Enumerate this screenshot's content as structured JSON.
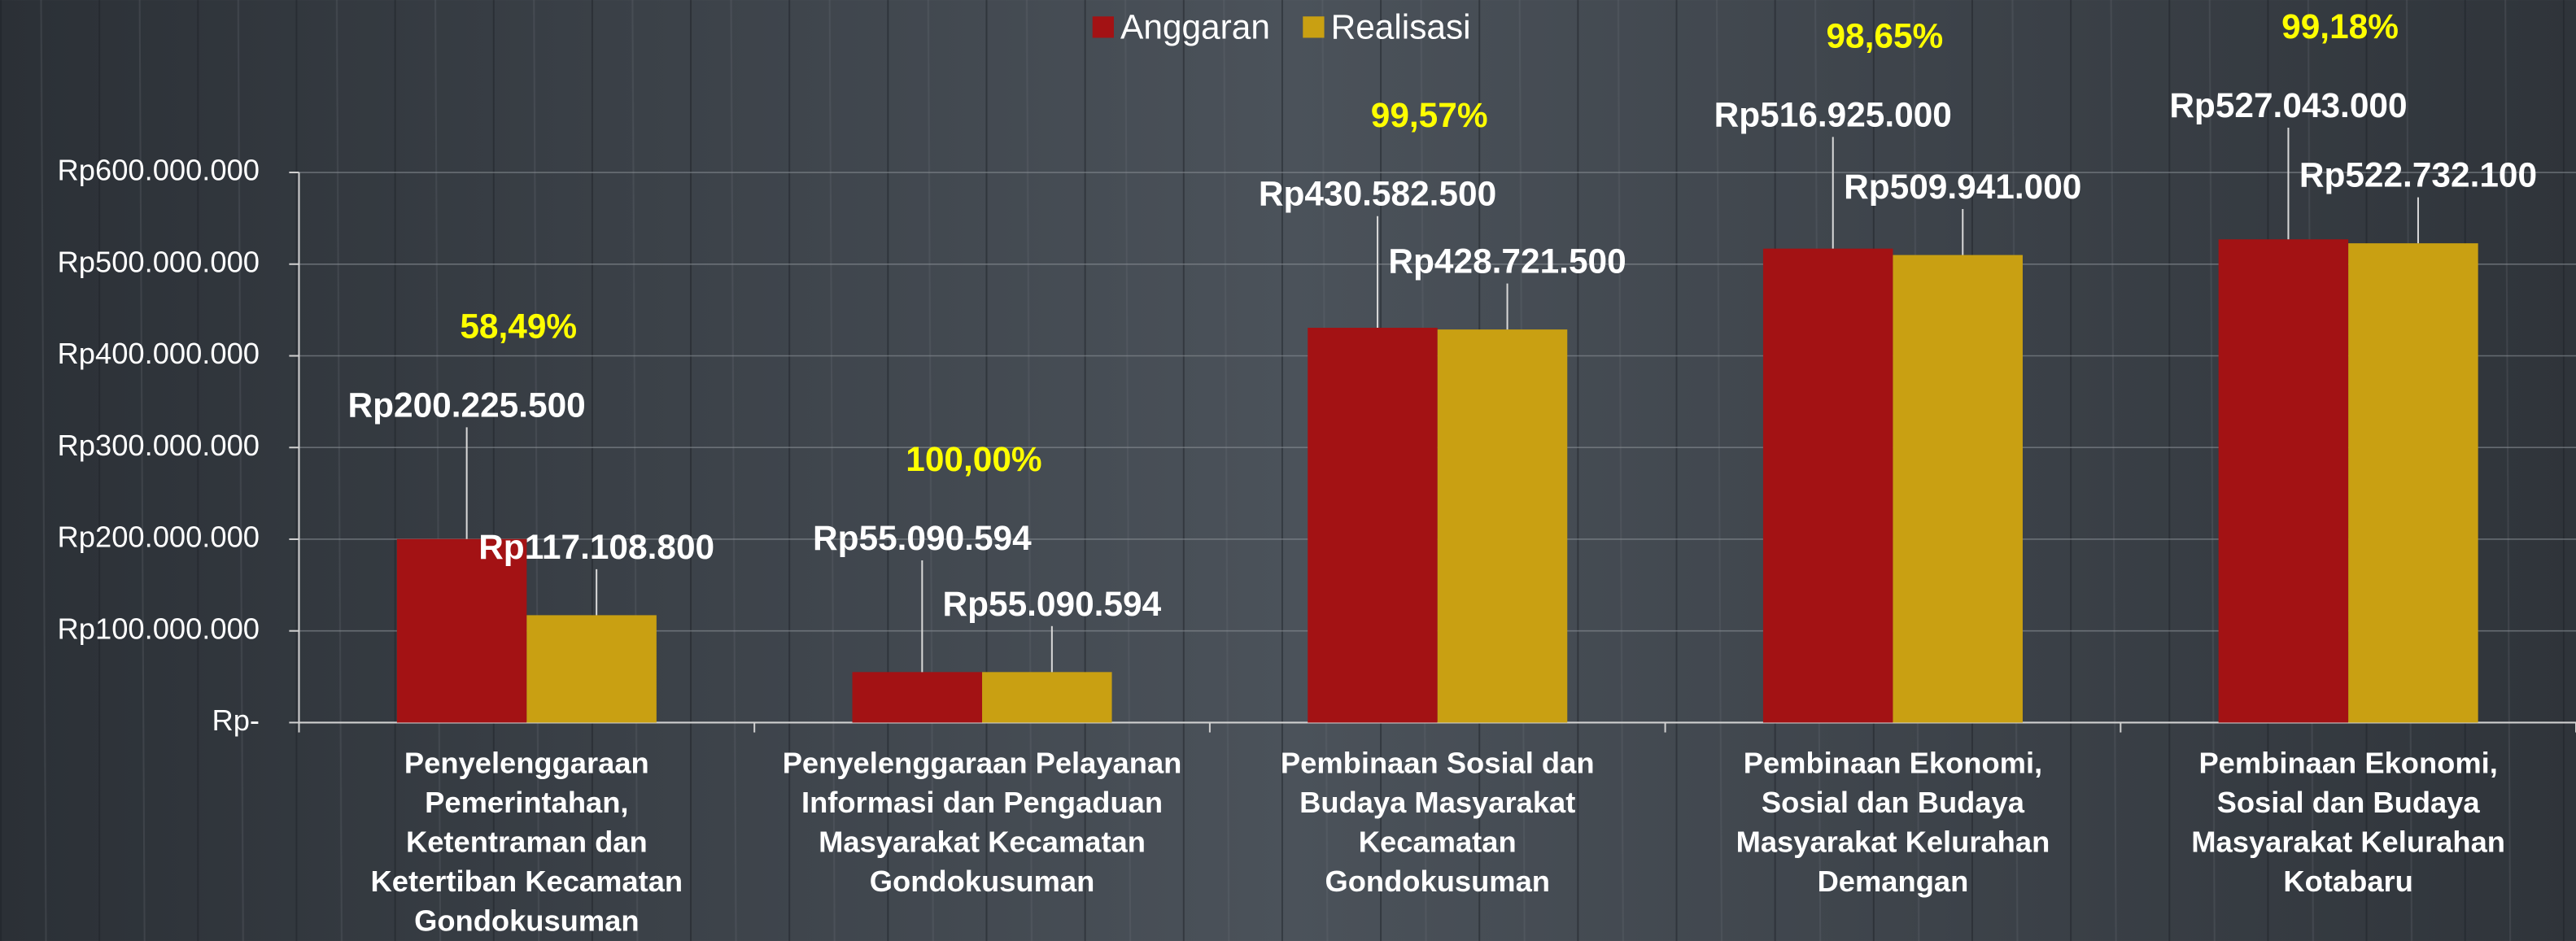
{
  "chart_data": {
    "type": "bar",
    "categories": [
      [
        "Penyelenggaraan",
        "Pemerintahan,",
        "Ketentraman dan",
        "Ketertiban Kecamatan",
        "Gondokusuman"
      ],
      [
        "Penyelenggaraan Pelayanan",
        "Informasi dan Pengaduan",
        "Masyarakat Kecamatan",
        "Gondokusuman"
      ],
      [
        "Pembinaan Sosial dan",
        "Budaya Masyarakat",
        "Kecamatan",
        "Gondokusuman"
      ],
      [
        "Pembinaan Ekonomi,",
        "Sosial dan Budaya",
        "Masyarakat Kelurahan",
        "Demangan"
      ],
      [
        "Pembinaan Ekonomi,",
        "Sosial dan Budaya",
        "Masyarakat Kelurahan",
        "Kotabaru"
      ]
    ],
    "series": [
      {
        "name": "Anggaran",
        "color": "#a31214",
        "values": [
          200225500,
          55090594,
          430582500,
          516925000,
          527043000
        ],
        "value_labels": [
          "Rp200.225.500",
          "Rp55.090.594",
          "Rp430.582.500",
          "Rp516.925.000",
          "Rp527.043.000"
        ]
      },
      {
        "name": "Realisasi",
        "color": "#c9a012",
        "values": [
          117108800,
          55090594,
          428721500,
          509941000,
          522732100
        ],
        "value_labels": [
          "Rp117.108.800",
          "Rp55.090.594",
          "Rp428.721.500",
          "Rp509.941.000",
          "Rp522.732.100"
        ]
      }
    ],
    "annotations": [
      "58,49%",
      "100,00%",
      "99,57%",
      "98,65%",
      "99,18%"
    ],
    "ylim": [
      0,
      600000000
    ],
    "yticks": [
      {
        "value": 0,
        "label": "Rp-"
      },
      {
        "value": 100000000,
        "label": "Rp100.000.000"
      },
      {
        "value": 200000000,
        "label": "Rp200.000.000"
      },
      {
        "value": 300000000,
        "label": "Rp300.000.000"
      },
      {
        "value": 400000000,
        "label": "Rp400.000.000"
      },
      {
        "value": 500000000,
        "label": "Rp500.000.000"
      },
      {
        "value": 600000000,
        "label": "Rp600.000.000"
      }
    ],
    "grid": true,
    "legend": "top"
  }
}
